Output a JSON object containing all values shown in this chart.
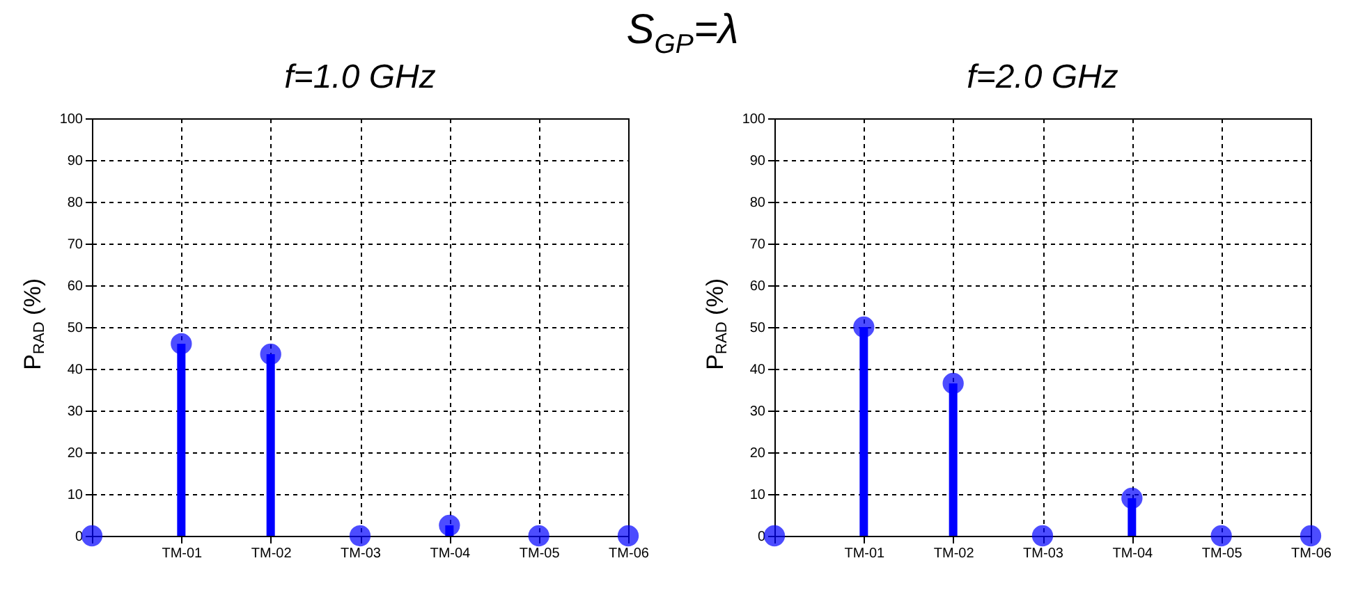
{
  "chart_data": [
    {
      "type": "lollipop",
      "title": "f=1.0 GHz",
      "annotations": [
        "S$_{GP}$=λ"
      ],
      "ylabel": "P$_{RAD}$ (%)",
      "categories": [
        null,
        "TM-01",
        "TM-02",
        "TM-03",
        "TM-04",
        "TM-05",
        "TM-06"
      ],
      "values": [
        0,
        46,
        43.5,
        0,
        2.5,
        0,
        0
      ],
      "color": "#0000ff",
      "ylim": [
        0,
        100
      ],
      "yticks": [
        0,
        10,
        20,
        30,
        40,
        50,
        60,
        70,
        80,
        90,
        100
      ],
      "grid": true,
      "marker": "circle"
    },
    {
      "type": "lollipop",
      "title": "f=2.0 GHz",
      "ylabel": "P$_{RAD}$ (%)",
      "categories": [
        null,
        "TM-01",
        "TM-02",
        "TM-03",
        "TM-04",
        "TM-05",
        "TM-06"
      ],
      "values": [
        0,
        50,
        36.5,
        0,
        9,
        0,
        0
      ],
      "color": "#0000ff",
      "ylim": [
        0,
        100
      ],
      "yticks": [
        0,
        10,
        20,
        30,
        40,
        50,
        60,
        70,
        80,
        90,
        100
      ],
      "grid": true,
      "marker": "circle"
    }
  ]
}
